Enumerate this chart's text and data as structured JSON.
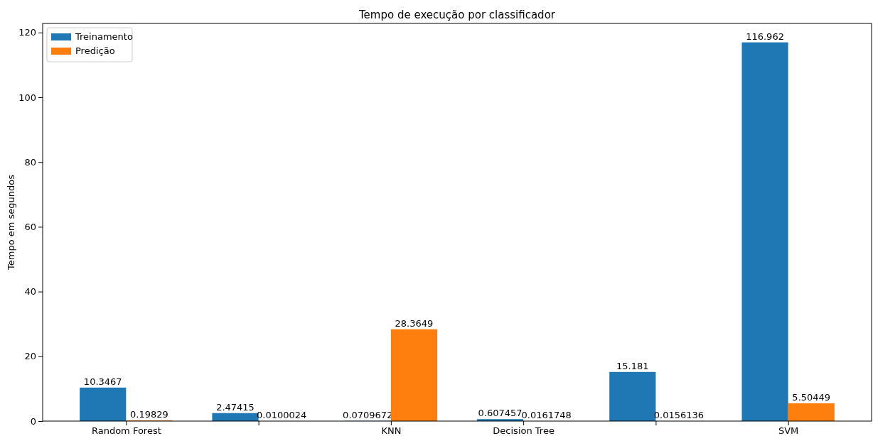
{
  "chart_data": {
    "type": "bar",
    "title": "Tempo de execução por classificador",
    "ylabel": "Tempo em segundos",
    "categories": [
      "Random Forest",
      null,
      "KNN",
      "Decision Tree",
      null,
      "SVM"
    ],
    "series": [
      {
        "name": "Treinamento",
        "color": "#1f77b4",
        "values": [
          10.3467,
          2.47415,
          0.0709672,
          0.607457,
          15.181,
          116.962
        ]
      },
      {
        "name": "Predição",
        "color": "#ff7f0e",
        "values": [
          0.19829,
          0.0100024,
          28.3649,
          0.0161748,
          0.0156136,
          5.50449
        ]
      }
    ],
    "ylim": [
      0,
      122.81
    ],
    "yticks": [
      0,
      20,
      40,
      60,
      80,
      100,
      120
    ],
    "data_labels": true,
    "legend": "top left",
    "grid": false
  }
}
